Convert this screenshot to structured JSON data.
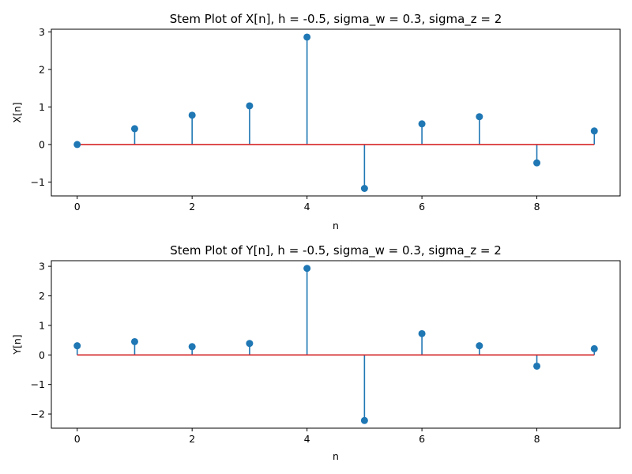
{
  "colors": {
    "stem": "#1f77b4",
    "baseline": "#d62728",
    "axes": "#000000"
  },
  "chart_data": [
    {
      "type": "stem",
      "title": "Stem Plot of X[n], h = -0.5, sigma_w = 0.3, sigma_z = 2",
      "xlabel": "n",
      "ylabel": "X[n]",
      "x": [
        0,
        1,
        2,
        3,
        4,
        5,
        6,
        7,
        8,
        9
      ],
      "values": [
        0.0,
        0.42,
        0.78,
        1.03,
        2.86,
        -1.17,
        0.55,
        0.74,
        -0.49,
        0.36
      ],
      "xlim": [
        -0.45,
        9.45
      ],
      "ylim": [
        -1.37,
        3.07
      ],
      "xticks": [
        0,
        2,
        4,
        6,
        8
      ],
      "xtick_labels": [
        "0",
        "2",
        "4",
        "6",
        "8"
      ],
      "yticks": [
        -1,
        0,
        1,
        2,
        3
      ],
      "ytick_labels": [
        "−1",
        "0",
        "1",
        "2",
        "3"
      ],
      "baseline": 0,
      "grid": false
    },
    {
      "type": "stem",
      "title": "Stem Plot of Y[n], h = -0.5, sigma_w = 0.3, sigma_z = 2",
      "xlabel": "n",
      "ylabel": "Y[n]",
      "x": [
        0,
        1,
        2,
        3,
        4,
        5,
        6,
        7,
        8,
        9
      ],
      "values": [
        0.31,
        0.45,
        0.28,
        0.39,
        2.93,
        -2.22,
        0.72,
        0.31,
        -0.38,
        0.21
      ],
      "xlim": [
        -0.45,
        9.45
      ],
      "ylim": [
        -2.48,
        3.19
      ],
      "xticks": [
        0,
        2,
        4,
        6,
        8
      ],
      "xtick_labels": [
        "0",
        "2",
        "4",
        "6",
        "8"
      ],
      "yticks": [
        -2,
        -1,
        0,
        1,
        2,
        3
      ],
      "ytick_labels": [
        "−2",
        "−1",
        "0",
        "1",
        "2",
        "3"
      ],
      "baseline": 0,
      "grid": false
    }
  ]
}
